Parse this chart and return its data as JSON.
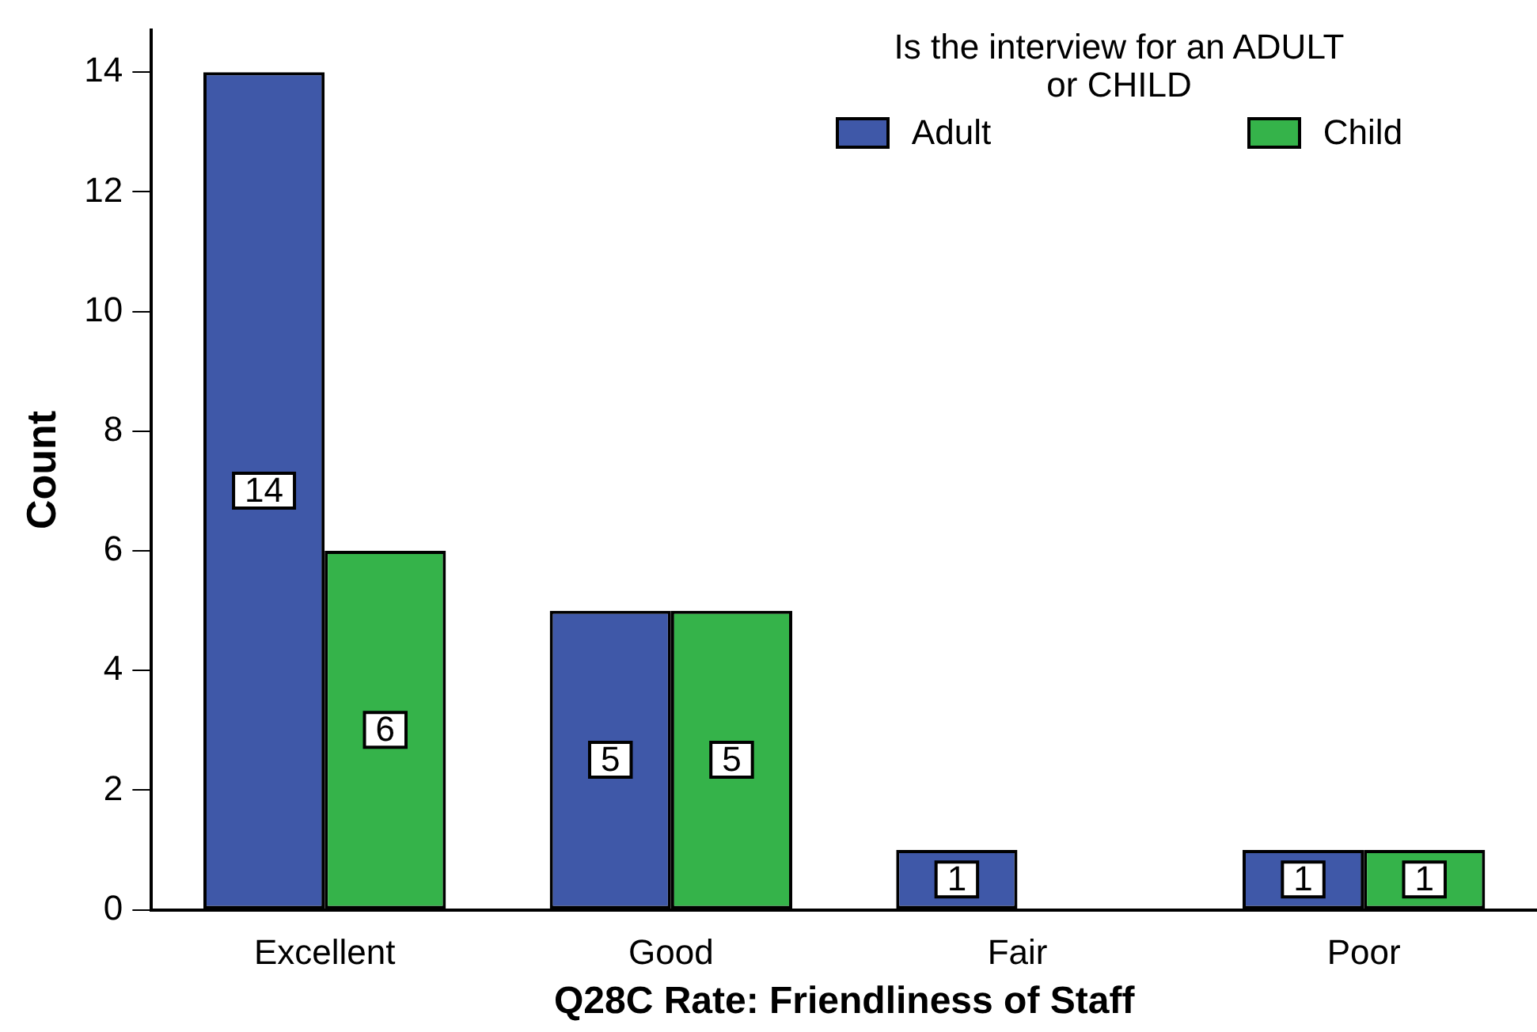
{
  "chart_data": {
    "type": "bar",
    "xlabel": "Q28C Rate: Friendliness of Staff",
    "ylabel": "Count",
    "legend_title": "Is the interview for an ADULT\nor CHILD",
    "legend": "top right",
    "grid": false,
    "categories": [
      "Excellent",
      "Good",
      "Fair",
      "Poor"
    ],
    "ylim": [
      0,
      14.7
    ],
    "yticks": [
      0,
      2,
      4,
      6,
      8,
      10,
      12,
      14
    ],
    "series": [
      {
        "name": "Adult",
        "color": "#3f58a8",
        "values": [
          14,
          5,
          1,
          1
        ],
        "value_labels": [
          "14",
          "5",
          "1",
          "1"
        ]
      },
      {
        "name": "Child",
        "color": "#35b34a",
        "values": [
          6,
          5,
          0,
          1
        ],
        "value_labels": [
          "6",
          "5",
          null,
          "1"
        ]
      }
    ]
  }
}
